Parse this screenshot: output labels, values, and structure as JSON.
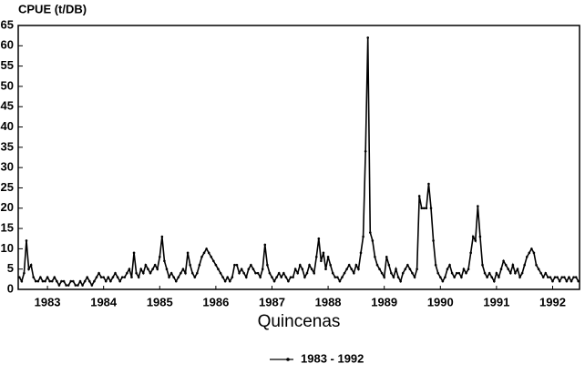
{
  "chart_data": {
    "type": "line",
    "title": "CPUE (t/DB)",
    "x_label": "Quincenas",
    "categories": [
      null,
      null,
      null,
      null,
      null,
      null,
      null,
      null,
      null,
      null,
      null,
      null,
      "1983",
      null,
      null,
      null,
      null,
      null,
      null,
      null,
      null,
      null,
      null,
      null,
      null,
      null,
      null,
      null,
      null,
      null,
      null,
      null,
      null,
      null,
      null,
      null,
      "1984",
      null,
      null,
      null,
      null,
      null,
      null,
      null,
      null,
      null,
      null,
      null,
      null,
      null,
      null,
      null,
      null,
      null,
      null,
      null,
      null,
      null,
      null,
      null,
      "1985",
      null,
      null,
      null,
      null,
      null,
      null,
      null,
      null,
      null,
      null,
      null,
      null,
      null,
      null,
      null,
      null,
      null,
      null,
      null,
      null,
      null,
      null,
      null,
      "1986",
      null,
      null,
      null,
      null,
      null,
      null,
      null,
      null,
      null,
      null,
      null,
      null,
      null,
      null,
      null,
      null,
      null,
      null,
      null,
      null,
      null,
      null,
      null,
      "1987",
      null,
      null,
      null,
      null,
      null,
      null,
      null,
      null,
      null,
      null,
      null,
      null,
      null,
      null,
      null,
      null,
      null,
      null,
      null,
      null,
      null,
      null,
      null,
      "1988",
      null,
      null,
      null,
      null,
      null,
      null,
      null,
      null,
      null,
      null,
      null,
      null,
      null,
      null,
      null,
      null,
      null,
      null,
      null,
      null,
      null,
      null,
      null,
      "1989",
      null,
      null,
      null,
      null,
      null,
      null,
      null,
      null,
      null,
      null,
      null,
      null,
      null,
      null,
      null,
      null,
      null,
      null,
      null,
      null,
      null,
      null,
      null,
      "1990",
      null,
      null,
      null,
      null,
      null,
      null,
      null,
      null,
      null,
      null,
      null,
      null,
      null,
      null,
      null,
      null,
      null,
      null,
      null,
      null,
      null,
      null,
      null,
      "1991",
      null,
      null,
      null,
      null,
      null,
      null,
      null,
      null,
      null,
      null,
      null,
      null,
      null,
      null,
      null,
      null,
      null,
      null,
      null,
      null,
      null,
      null,
      null,
      "1992",
      null,
      null,
      null,
      null,
      null,
      null,
      null,
      null,
      null,
      null,
      null
    ],
    "series": [
      {
        "name": "1983 - 1992",
        "color": "#000000",
        "values": [
          3,
          2,
          4,
          12,
          5,
          6,
          3,
          2,
          2,
          3,
          2,
          2,
          3,
          2,
          2,
          3,
          2,
          1,
          2,
          2,
          1,
          1,
          2,
          2,
          1,
          1,
          2,
          1,
          2,
          3,
          2,
          1,
          2,
          3,
          4,
          3,
          3,
          2,
          3,
          2,
          3,
          4,
          3,
          2,
          3,
          3,
          4,
          5,
          3,
          9,
          4,
          3,
          5,
          4,
          6,
          5,
          4,
          5,
          6,
          5,
          8,
          13,
          7,
          5,
          3,
          4,
          3,
          2,
          3,
          4,
          5,
          4,
          9,
          6,
          4,
          3,
          4,
          6,
          8,
          9,
          10,
          9,
          8,
          7,
          6,
          5,
          4,
          3,
          2,
          3,
          2,
          3,
          6,
          6,
          4,
          5,
          4,
          3,
          5,
          6,
          5,
          4,
          4,
          3,
          5,
          11,
          6,
          4,
          3,
          2,
          3,
          4,
          3,
          4,
          3,
          2,
          3,
          3,
          5,
          4,
          6,
          5,
          3,
          4,
          6,
          5,
          4,
          8,
          12.5,
          7,
          9,
          5,
          8,
          6,
          4,
          3,
          3,
          2,
          3,
          4,
          5,
          6,
          5,
          4,
          6,
          5,
          9,
          13,
          34,
          62,
          14,
          12,
          8,
          6,
          5,
          4,
          3,
          8,
          6,
          4,
          3,
          5,
          3,
          2,
          4,
          5,
          6,
          5,
          4,
          3,
          5,
          23,
          20,
          20,
          20,
          26,
          20,
          12,
          6,
          4,
          3,
          2,
          3,
          5,
          6,
          4,
          3,
          4,
          4,
          3,
          5,
          4,
          5,
          9,
          13,
          12,
          20.5,
          13,
          6,
          4,
          3,
          4,
          3,
          2,
          4,
          3,
          5,
          7,
          6,
          5,
          4,
          6,
          4,
          5,
          3,
          4,
          6,
          8,
          9,
          10,
          9,
          6,
          5,
          4,
          3,
          4,
          3,
          3,
          2,
          3,
          3,
          2,
          3,
          3,
          2,
          3,
          2,
          3,
          3,
          2
        ]
      }
    ],
    "ylim": [
      0,
      65
    ],
    "yticks": [
      0,
      5,
      10,
      15,
      20,
      25,
      30,
      35,
      40,
      45,
      50,
      55,
      60,
      65
    ],
    "grid": false
  }
}
